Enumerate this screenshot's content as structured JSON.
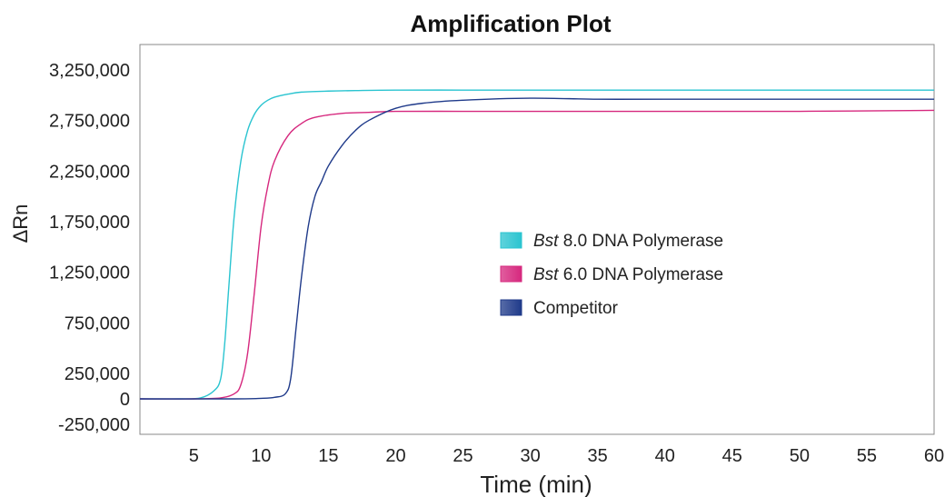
{
  "chart_data": {
    "type": "line",
    "title": "Amplification Plot",
    "xlabel": "Time (min)",
    "ylabel": "ΔRn",
    "xlim": [
      1,
      60
    ],
    "ylim": [
      -350000,
      3500000
    ],
    "x_ticks": [
      5,
      10,
      15,
      20,
      25,
      30,
      35,
      40,
      45,
      50,
      55,
      60
    ],
    "x_tick_labels": [
      "5",
      "10",
      "15",
      "20",
      "25",
      "30",
      "35",
      "40",
      "45",
      "50",
      "55",
      "60"
    ],
    "y_ticks": [
      -250000,
      0,
      250000,
      750000,
      1250000,
      1750000,
      2250000,
      2750000,
      3250000
    ],
    "y_tick_labels": [
      "-250,000",
      "0",
      "250,000",
      "750,000",
      "1,250,000",
      "1,750,000",
      "2,250,000",
      "2,750,000",
      "3,250,000"
    ],
    "grid": false,
    "legend_position": "center-right",
    "series": [
      {
        "legend_italic": "Bst",
        "legend_rest": " 8.0 DNA Polymerase",
        "color": "#2ac4d0",
        "x": [
          1,
          4,
          5.5,
          6.5,
          7,
          7.3,
          7.6,
          8,
          8.5,
          9,
          9.5,
          10,
          10.5,
          11,
          12,
          13,
          15,
          17,
          20,
          25,
          30,
          40,
          50,
          60
        ],
        "values": [
          0,
          0,
          10000,
          80000,
          200000,
          550000,
          1100000,
          1800000,
          2350000,
          2650000,
          2810000,
          2900000,
          2950000,
          2980000,
          3010000,
          3030000,
          3040000,
          3045000,
          3050000,
          3050000,
          3050000,
          3050000,
          3050000,
          3050000
        ]
      },
      {
        "legend_italic": "Bst",
        "legend_rest": " 6.0 DNA Polymerase",
        "color": "#d6287e",
        "x": [
          1,
          5,
          7,
          8,
          8.5,
          9,
          9.5,
          10,
          10.5,
          11,
          12,
          13,
          14,
          16,
          18,
          20,
          25,
          30,
          40,
          50,
          60
        ],
        "values": [
          0,
          0,
          10000,
          50000,
          140000,
          450000,
          1050000,
          1700000,
          2100000,
          2350000,
          2600000,
          2720000,
          2780000,
          2820000,
          2830000,
          2840000,
          2840000,
          2840000,
          2840000,
          2840000,
          2850000
        ]
      },
      {
        "legend_italic": "",
        "legend_rest": "Competitor",
        "color": "#1f3a8a",
        "x": [
          1,
          8,
          10,
          11,
          11.8,
          12.2,
          12.6,
          13,
          13.5,
          14,
          14.5,
          15,
          16,
          17,
          18,
          20,
          22,
          25,
          30,
          35,
          40,
          50,
          60
        ],
        "values": [
          0,
          0,
          5000,
          15000,
          50000,
          200000,
          700000,
          1200000,
          1700000,
          2000000,
          2150000,
          2300000,
          2500000,
          2650000,
          2750000,
          2870000,
          2920000,
          2950000,
          2970000,
          2960000,
          2960000,
          2960000,
          2960000
        ]
      }
    ]
  }
}
